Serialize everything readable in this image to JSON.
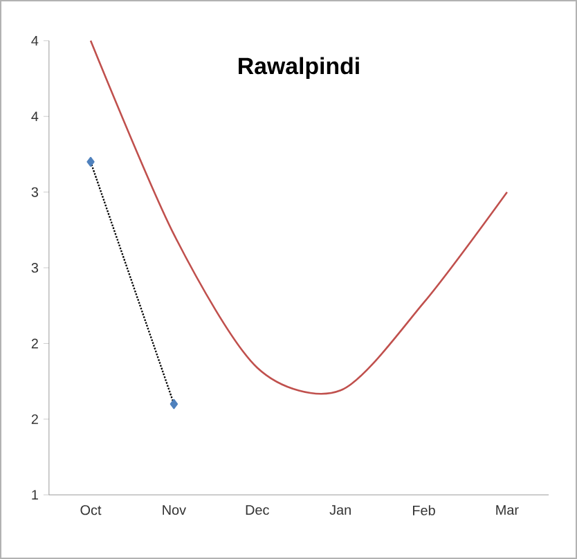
{
  "chart_data": {
    "type": "line",
    "title": "Rawalpindi",
    "categories": [
      "Oct",
      "Nov",
      "Dec",
      "Jan",
      "Feb",
      "Mar"
    ],
    "series": [
      {
        "color": "#4f81bd",
        "values": [
          3.2,
          1.6,
          null,
          null,
          null,
          null
        ],
        "marker": "diamond",
        "line_style": "dotted"
      },
      {
        "color": "#c0504d",
        "values": [
          4.0,
          2.72,
          1.84,
          1.69,
          2.27,
          3.0
        ],
        "marker": "none",
        "line_style": "solid"
      }
    ],
    "ylim": [
      1,
      4
    ],
    "yticks": [
      {
        "value": 1,
        "label": "1"
      },
      {
        "value": 1.5,
        "label": "2"
      },
      {
        "value": 2,
        "label": "2"
      },
      {
        "value": 2.5,
        "label": "3"
      },
      {
        "value": 3,
        "label": "3"
      },
      {
        "value": 3.5,
        "label": "4"
      },
      {
        "value": 4,
        "label": "4"
      }
    ],
    "grid": false,
    "legend": false
  }
}
